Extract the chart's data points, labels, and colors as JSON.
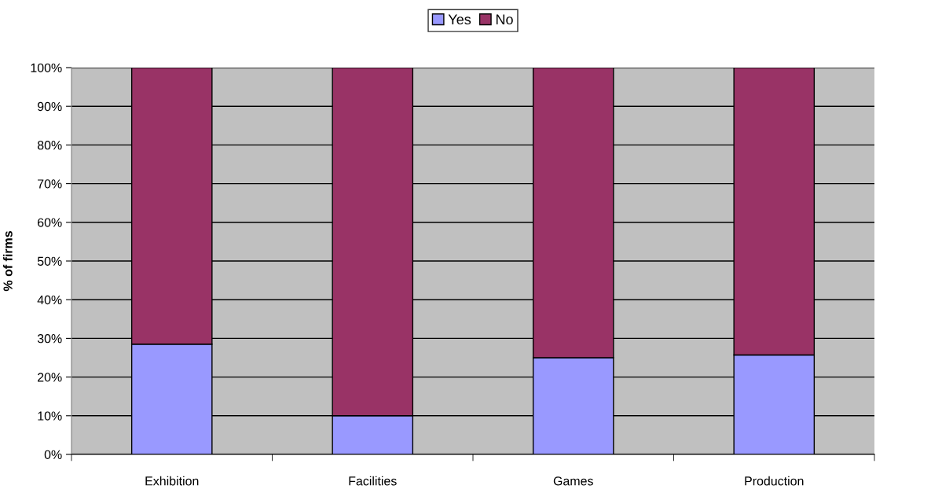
{
  "chart_data": {
    "type": "bar",
    "stacked": true,
    "ylabel": "% of firms",
    "categories": [
      "Exhibition",
      "Facilities",
      "Games",
      "Production"
    ],
    "series": [
      {
        "name": "Yes",
        "color": "#9999ff",
        "values": [
          28.5,
          10,
          25,
          25.7
        ]
      },
      {
        "name": "No",
        "color": "#993366",
        "values": [
          71.5,
          90,
          75,
          74.3
        ]
      }
    ],
    "ylim": [
      0,
      100
    ],
    "yticks": [
      {
        "value": 0,
        "label": "0%"
      },
      {
        "value": 10,
        "label": "10%"
      },
      {
        "value": 20,
        "label": "20%"
      },
      {
        "value": 30,
        "label": "30%"
      },
      {
        "value": 40,
        "label": "40%"
      },
      {
        "value": 50,
        "label": "50%"
      },
      {
        "value": 60,
        "label": "60%"
      },
      {
        "value": 70,
        "label": "70%"
      },
      {
        "value": 80,
        "label": "80%"
      },
      {
        "value": 90,
        "label": "90%"
      },
      {
        "value": 100,
        "label": "100%"
      }
    ],
    "grid": "y",
    "legend": "top"
  }
}
